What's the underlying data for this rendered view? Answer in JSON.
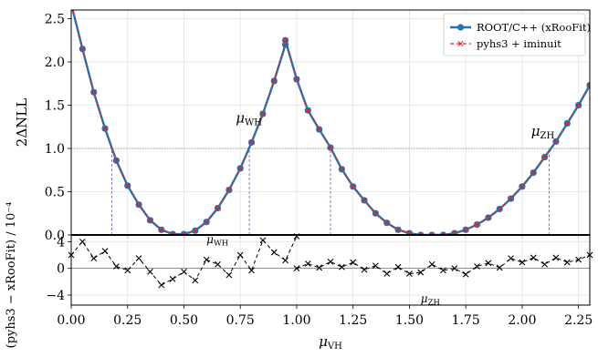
{
  "chart_data": [
    {
      "type": "line",
      "panel": "top",
      "ylabel": "2ΔNLL",
      "xlim": [
        0.0,
        2.3
      ],
      "ylim": [
        0.0,
        2.6
      ],
      "yticks": [
        "0.0",
        "0.5",
        "1.0",
        "1.5",
        "2.0",
        "2.5"
      ],
      "grid": true,
      "legend_position": "top-right",
      "reference_line_y": 1.0,
      "colors": {
        "root": "#1f77b4",
        "pyhs3": "#d62728",
        "interval": "#9467bd"
      },
      "annotations": [
        {
          "label_main": "μ",
          "label_sub": "WH",
          "x": 0.73,
          "y": 1.3
        },
        {
          "label_main": "μ",
          "label_sub": "ZH",
          "x": 2.04,
          "y": 1.15
        }
      ],
      "interval_lines_x": [
        0.18,
        0.79,
        1.15,
        2.12
      ],
      "series": [
        {
          "name": "ROOT/C++ (xRooFit)",
          "curve": "WH",
          "x": [
            0.0,
            0.05,
            0.1,
            0.15,
            0.2,
            0.25,
            0.3,
            0.35,
            0.4,
            0.45,
            0.5,
            0.55,
            0.6,
            0.65,
            0.7,
            0.75,
            0.8,
            0.85,
            0.9,
            0.95
          ],
          "y": [
            2.67,
            2.15,
            1.65,
            1.23,
            0.86,
            0.57,
            0.35,
            0.17,
            0.06,
            0.01,
            0.01,
            0.05,
            0.15,
            0.31,
            0.52,
            0.77,
            1.07,
            1.4,
            1.78,
            2.2
          ]
        },
        {
          "name": "ROOT/C++ (xRooFit)",
          "curve": "ZH",
          "x": [
            0.95,
            1.0,
            1.05,
            1.1,
            1.15,
            1.2,
            1.25,
            1.3,
            1.35,
            1.4,
            1.45,
            1.5,
            1.55,
            1.6,
            1.65,
            1.7,
            1.75,
            1.8,
            1.85,
            1.9,
            1.95,
            2.0,
            2.05,
            2.1,
            2.15,
            2.2,
            2.25,
            2.3
          ],
          "y": [
            2.25,
            1.8,
            1.44,
            1.22,
            1.01,
            0.76,
            0.56,
            0.4,
            0.25,
            0.14,
            0.06,
            0.02,
            0.0,
            0.0,
            0.0,
            0.02,
            0.06,
            0.12,
            0.2,
            0.3,
            0.42,
            0.56,
            0.72,
            0.9,
            1.08,
            1.29,
            1.5,
            1.73
          ]
        }
      ],
      "legend": [
        {
          "label": "ROOT/C++ (xRooFit)",
          "style": "solid-circle"
        },
        {
          "label": "pyhs3 + iminuit",
          "style": "dashed-cross"
        }
      ]
    },
    {
      "type": "line",
      "panel": "bottom",
      "ylabel": "(pyhs3 − xRooFit) / 10⁻⁴",
      "xlabel_main": "μ",
      "xlabel_sub": "VH",
      "xlim": [
        0.0,
        2.3
      ],
      "ylim": [
        -5.5,
        5.0
      ],
      "yticks": [
        "−4",
        "0",
        "4"
      ],
      "xticks": [
        "0.00",
        "0.25",
        "0.50",
        "0.75",
        "1.00",
        "1.25",
        "1.50",
        "1.75",
        "2.00",
        "2.25"
      ],
      "grid": true,
      "series_name": "pyhs3 + iminuit",
      "annotations": [
        {
          "label_main": "μ",
          "label_sub": "WH",
          "x": 0.6,
          "y": 3.8
        },
        {
          "label_main": "μ",
          "label_sub": "ZH",
          "x": 1.55,
          "y": -5.1
        }
      ],
      "series": [
        {
          "curve": "WH",
          "x": [
            0.0,
            0.05,
            0.1,
            0.15,
            0.2,
            0.25,
            0.3,
            0.35,
            0.4,
            0.45,
            0.5,
            0.55,
            0.6,
            0.65,
            0.7,
            0.75,
            0.8,
            0.85,
            0.9,
            0.95,
            1.0
          ],
          "y": [
            2.0,
            4.0,
            1.5,
            2.6,
            0.3,
            -0.3,
            1.5,
            -0.5,
            -2.5,
            -1.6,
            -0.5,
            -1.8,
            1.3,
            0.6,
            -1.0,
            2.0,
            -0.3,
            4.2,
            2.4,
            1.2,
            4.8
          ]
        },
        {
          "curve": "ZH",
          "x": [
            1.0,
            1.05,
            1.1,
            1.15,
            1.2,
            1.25,
            1.3,
            1.35,
            1.4,
            1.45,
            1.5,
            1.55,
            1.6,
            1.65,
            1.7,
            1.75,
            1.8,
            1.85,
            1.9,
            1.95,
            2.0,
            2.05,
            2.1,
            2.15,
            2.2,
            2.25,
            2.3
          ],
          "y": [
            0.0,
            0.7,
            0.1,
            1.0,
            0.2,
            0.9,
            -0.2,
            0.4,
            -0.8,
            0.2,
            -0.8,
            -0.6,
            0.6,
            -0.3,
            0.0,
            -0.9,
            0.3,
            0.8,
            0.1,
            1.5,
            0.9,
            1.6,
            0.6,
            1.6,
            0.9,
            1.3,
            2.0
          ]
        }
      ]
    }
  ]
}
